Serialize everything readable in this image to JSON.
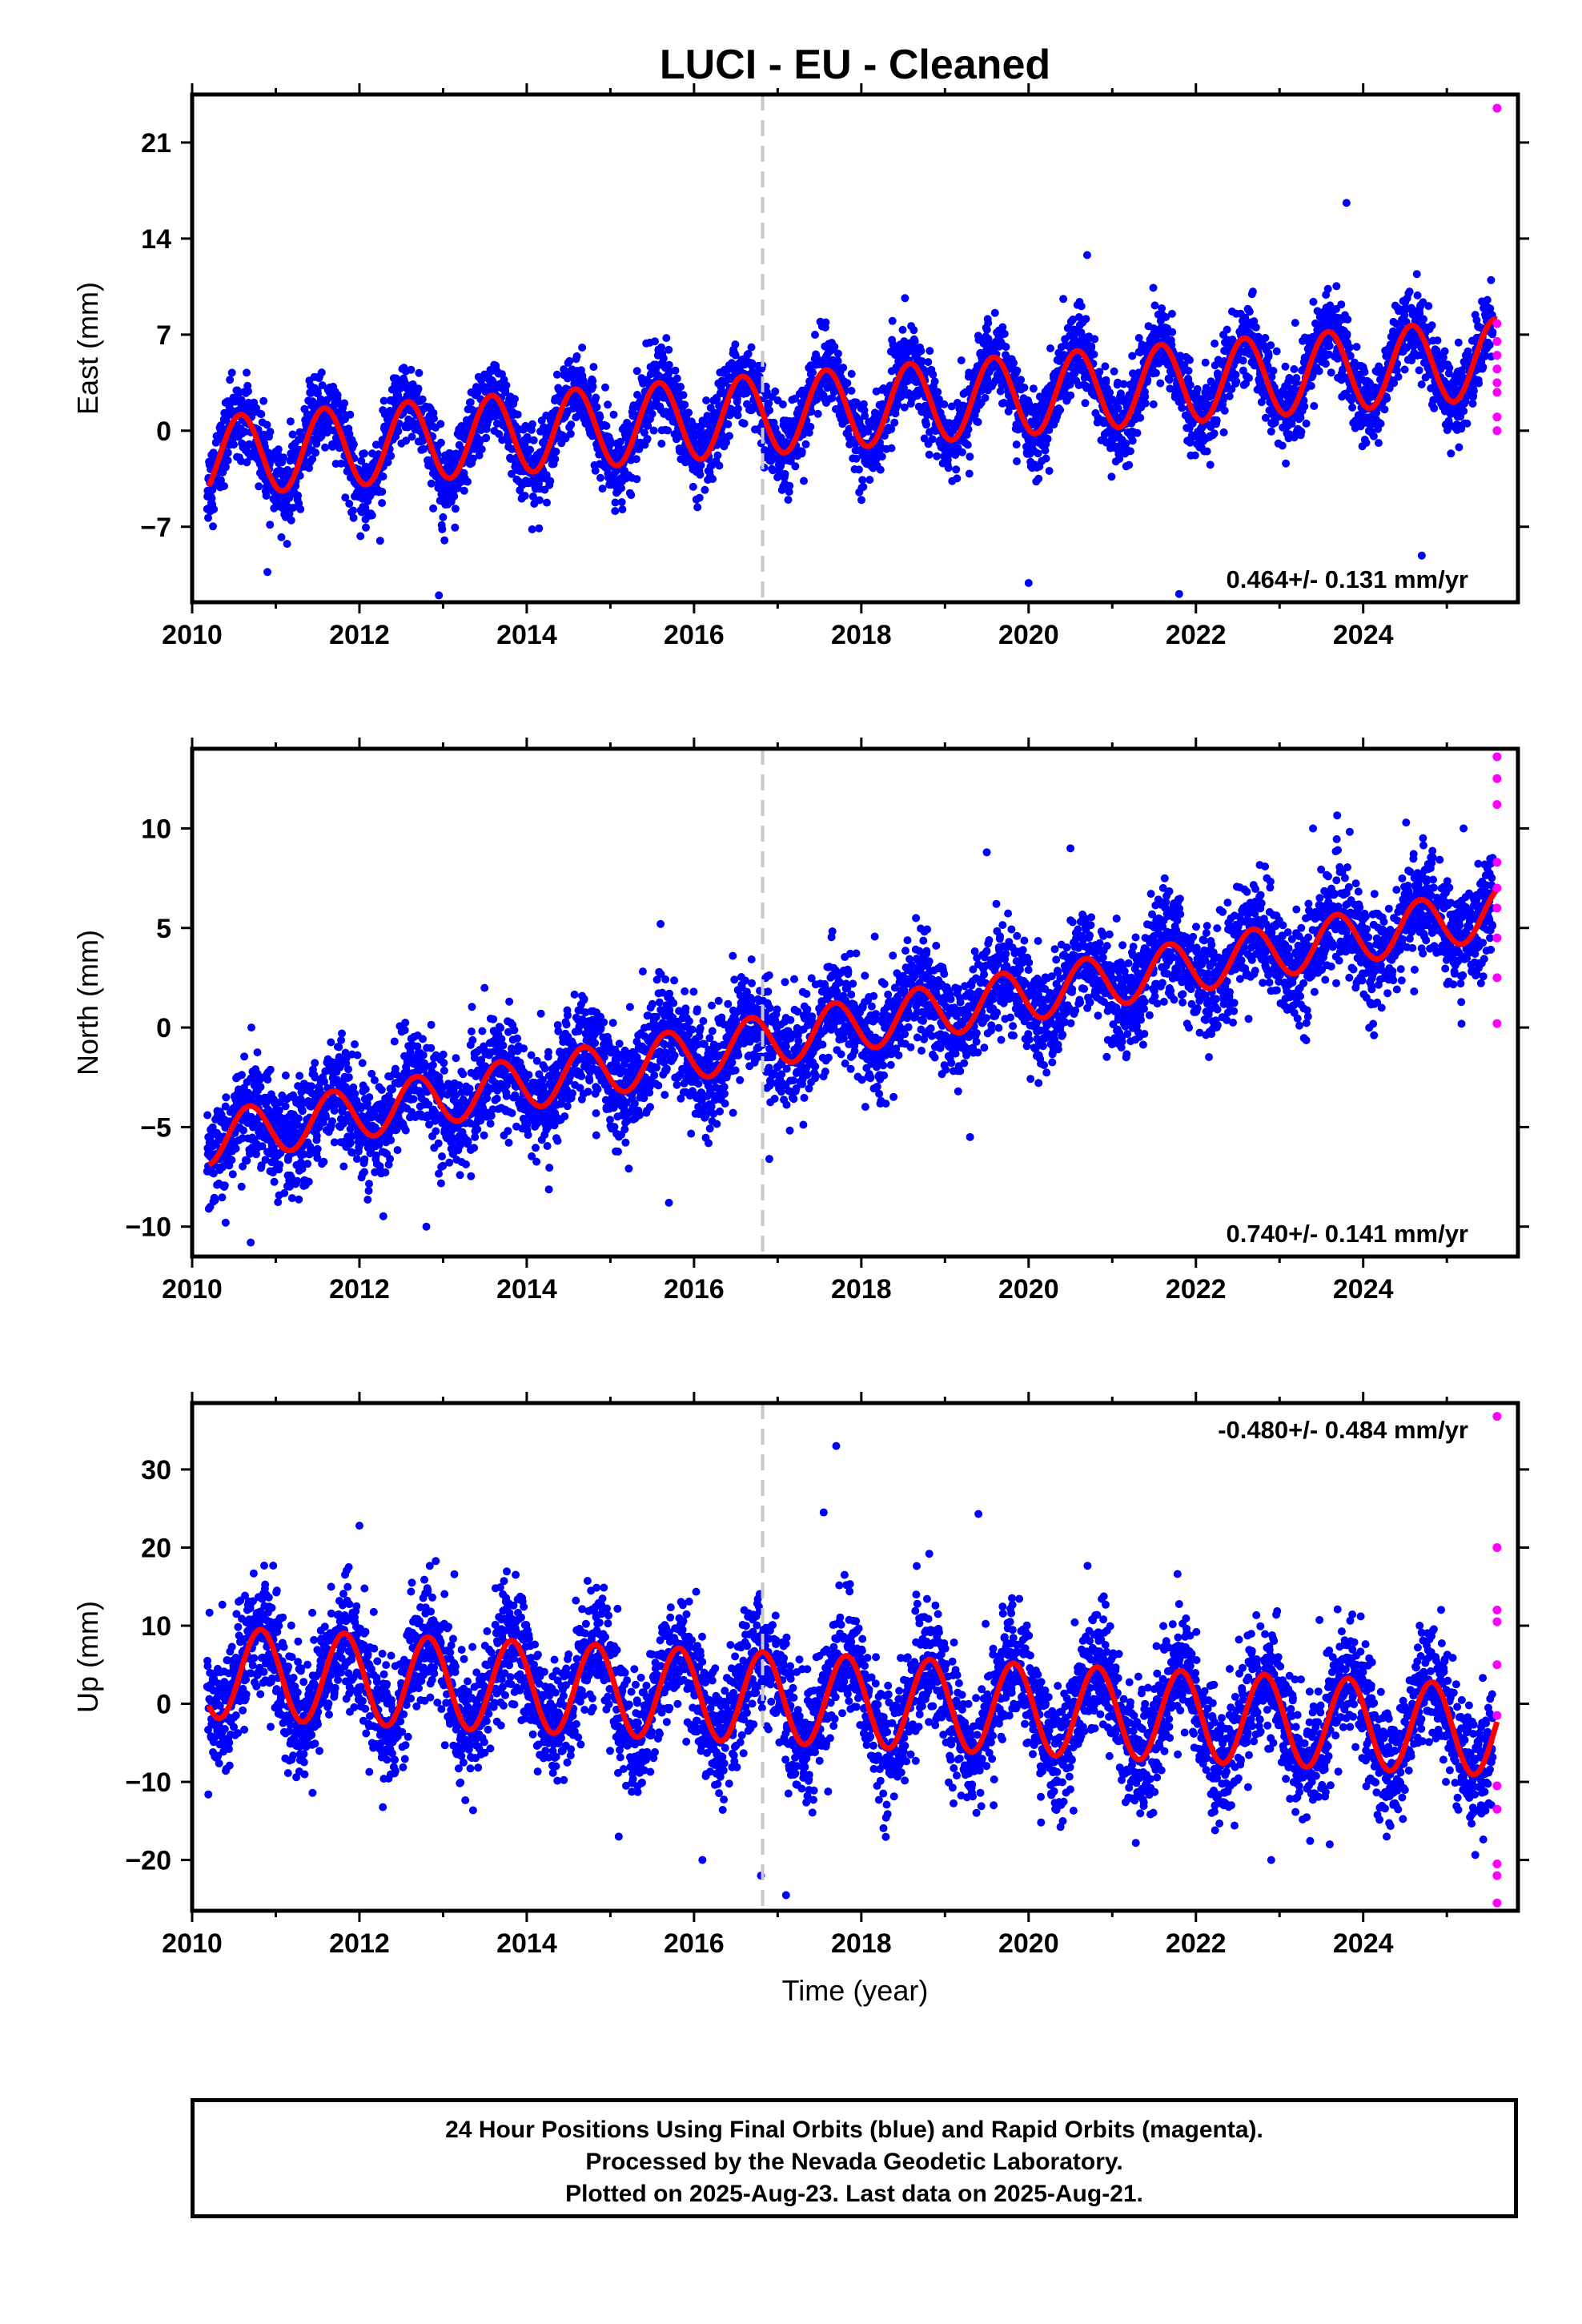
{
  "title": "LUCI  - EU - Cleaned",
  "colors": {
    "final_orbits": "#0000ff",
    "rapid_orbits": "#ff00ff",
    "model": "#ff0000",
    "step_line": "#c8c8c8",
    "frame": "#000000"
  },
  "chart_data": [
    {
      "type": "scatter",
      "component": "east",
      "ylabel": "East (mm)",
      "xlabel": "",
      "xlim": [
        2010.0,
        2025.85
      ],
      "ylim": [
        -12.5,
        24.5
      ],
      "xticks": [
        2010,
        2012,
        2014,
        2016,
        2018,
        2020,
        2022,
        2024
      ],
      "yticks": [
        -7,
        0,
        7,
        14,
        21
      ],
      "rate_label": "0.464+/- 0.131 mm/yr",
      "rate_position": "bottom-right",
      "step_epoch": 2016.82,
      "model": {
        "t0": 2010.2,
        "offset": -1.9,
        "rate": 0.464,
        "annual_amplitude": 2.9,
        "annual_phase_year": 0.38
      },
      "scatter_sigma": 1.4,
      "outliers": [
        [
          2010.9,
          -10.3
        ],
        [
          2012.95,
          -12.0
        ],
        [
          2020.7,
          12.8
        ],
        [
          2023.8,
          16.6
        ],
        [
          2021.8,
          -11.9
        ],
        [
          2024.7,
          -9.1
        ],
        [
          2020.0,
          -11.1
        ]
      ],
      "rapid_values": [
        23.5,
        7.8,
        6.5,
        5.5,
        4.5,
        3.5,
        2.8,
        1.0,
        0.0
      ]
    },
    {
      "type": "scatter",
      "component": "north",
      "ylabel": "North (mm)",
      "xlabel": "",
      "xlim": [
        2010.0,
        2025.85
      ],
      "ylim": [
        -11.5,
        14.0
      ],
      "xticks": [
        2010,
        2012,
        2014,
        2016,
        2018,
        2020,
        2022,
        2024
      ],
      "yticks": [
        -10,
        -5,
        0,
        5,
        10
      ],
      "rate_label": "0.740+/- 0.141 mm/yr",
      "rate_position": "bottom-right",
      "step_epoch": 2016.82,
      "model": {
        "t0": 2010.2,
        "offset": -5.6,
        "rate": 0.74,
        "annual_amplitude": 1.3,
        "annual_phase_year": 0.48
      },
      "scatter_sigma": 1.3,
      "outliers": [
        [
          2010.4,
          -9.8
        ],
        [
          2010.7,
          -10.8
        ],
        [
          2012.8,
          -10.0
        ],
        [
          2015.6,
          5.2
        ],
        [
          2015.7,
          -8.8
        ],
        [
          2016.9,
          -6.6
        ],
        [
          2019.5,
          8.8
        ],
        [
          2020.5,
          9.0
        ],
        [
          2023.4,
          10.0
        ],
        [
          2025.2,
          10.0
        ],
        [
          2019.3,
          -5.5
        ]
      ],
      "rapid_values": [
        13.6,
        12.5,
        11.2,
        8.3,
        7.0,
        6.0,
        4.5,
        2.5,
        0.2
      ]
    },
    {
      "type": "scatter",
      "component": "up",
      "ylabel": "Up (mm)",
      "xlabel": "Time (year)",
      "xlim": [
        2010.0,
        2025.85
      ],
      "ylim": [
        -26.5,
        38.5
      ],
      "xticks": [
        2010,
        2012,
        2014,
        2016,
        2018,
        2020,
        2022,
        2024
      ],
      "yticks": [
        -20,
        -10,
        0,
        10,
        20,
        30
      ],
      "rate_label": "-0.480+/- 0.484 mm/yr",
      "rate_position": "top-right",
      "step_epoch": 2016.82,
      "model": {
        "t0": 2010.2,
        "offset": 4.0,
        "rate": -0.48,
        "annual_amplitude": 5.8,
        "annual_phase_year": 0.62
      },
      "scatter_sigma": 3.8,
      "outliers": [
        [
          2017.7,
          33.0
        ],
        [
          2017.55,
          24.5
        ],
        [
          2019.4,
          24.3
        ],
        [
          2015.1,
          -17.0
        ],
        [
          2016.1,
          -20.0
        ],
        [
          2016.8,
          -22.0
        ],
        [
          2017.1,
          -24.5
        ],
        [
          2022.9,
          -20.0
        ],
        [
          2023.6,
          -18.0
        ],
        [
          2012.0,
          22.8
        ]
      ],
      "rapid_values": [
        36.8,
        20.0,
        12.0,
        10.5,
        5.0,
        -1.5,
        -10.5,
        -13.5,
        -20.5,
        -22.0,
        -25.5
      ]
    }
  ],
  "caption": {
    "line1": "24 Hour Positions Using Final Orbits (blue) and Rapid Orbits (magenta).",
    "line2": "Processed by the Nevada Geodetic Laboratory.",
    "line3": "Plotted on 2025-Aug-23. Last data on 2025-Aug-21."
  }
}
